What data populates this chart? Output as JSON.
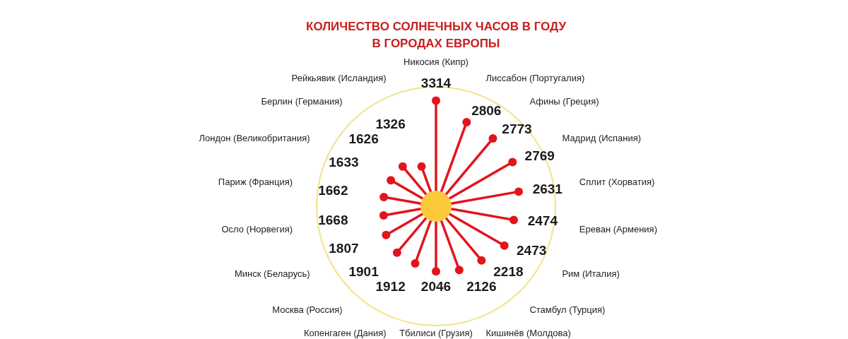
{
  "chart_data": {
    "type": "other",
    "title": "КОЛИЧЕСТВО СОЛНЕЧНЫХ ЧАСОВ В ГОДУ В ГОРОДАХ ЕВРОПЫ",
    "categories": [
      "Никосия (Кипр)",
      "Лиссабон (Португалия)",
      "Афины (Греция)",
      "Мадрид (Испания)",
      "Сплит (Хорватия)",
      "Ереван (Армения)",
      "Рим (Италия)",
      "Стамбул (Турция)",
      "Кишинёв (Молдова)",
      "Тбилиси (Грузия)",
      "Копенгаген (Дания)",
      "Москва (Россия)",
      "Минск (Беларусь)",
      "Осло (Норвегия)",
      "Париж (Франция)",
      "Лондон (Великобритания)",
      "Берлин (Германия)",
      "Рейкьявик (Исландия)"
    ],
    "values": [
      3314,
      2806,
      2773,
      2769,
      2631,
      2474,
      2473,
      2218,
      2126,
      2046,
      1912,
      1901,
      1807,
      1668,
      1662,
      1633,
      1626,
      1326
    ],
    "color": "#e3141b",
    "data_labels": true
  }
}
